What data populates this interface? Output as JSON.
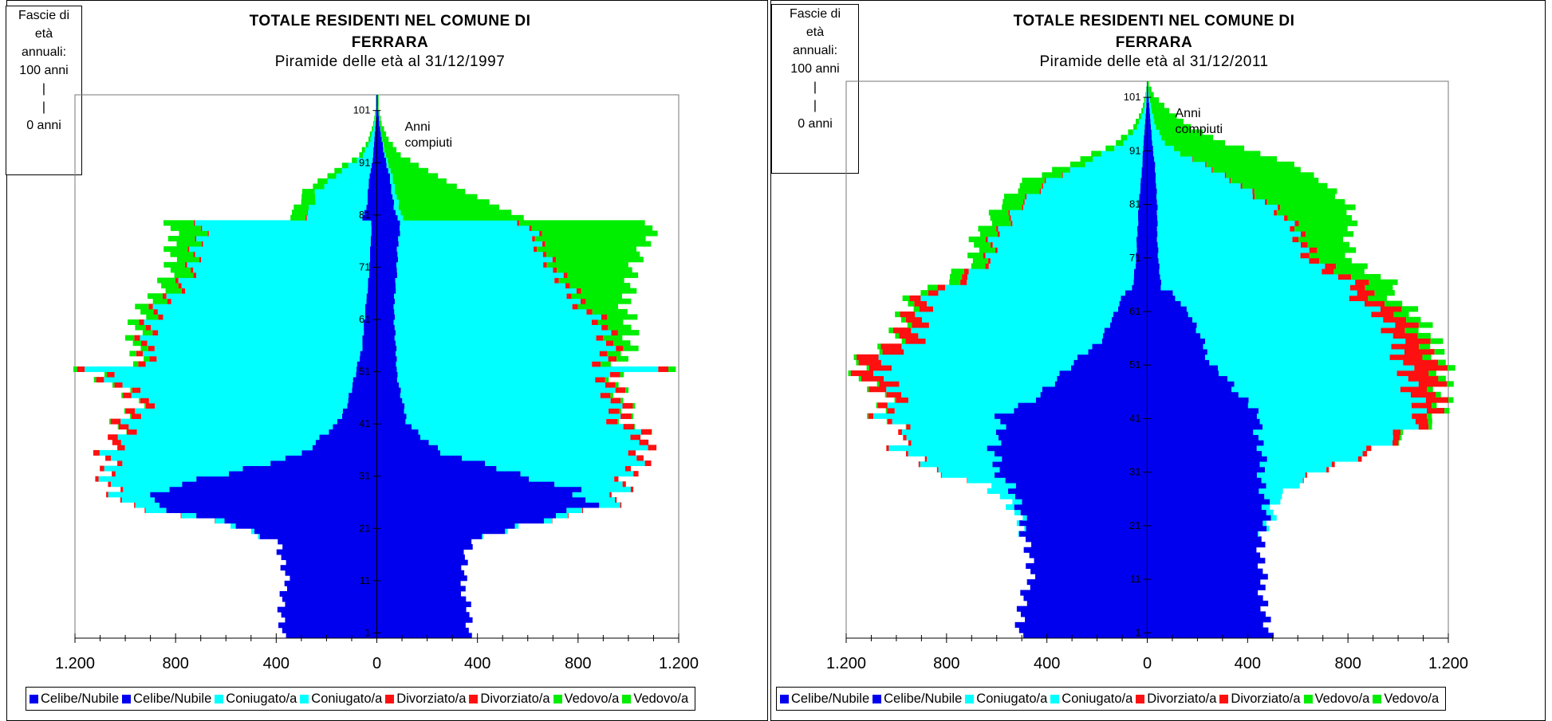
{
  "colors": {
    "celibe": "#0000ee",
    "coniugato": "#00ffff",
    "divorziato": "#ff1010",
    "vedovo": "#00ee00"
  },
  "age_box": {
    "line1": "Fascie di",
    "line2": "età",
    "line3": "annuali:",
    "line4": "100 anni",
    "line5": "|",
    "line6": "|",
    "line7": "0 anni"
  },
  "chart_data": [
    {
      "type": "bar",
      "title": "TOTALE RESIDENTI NEL COMUNE DI",
      "title2": "FERRARA",
      "subtitle": "Piramide delle età al 31/12/1997",
      "annotation1": "Anni",
      "annotation2": "compiuti",
      "age_ticks": [
        "1",
        "11",
        "21",
        "31",
        "41",
        "51",
        "61",
        "71",
        "81",
        "91",
        "101"
      ],
      "x_tick_labels": [
        "1.200",
        "800",
        "400",
        "0",
        "400",
        "800",
        "1.200"
      ],
      "xlim": [
        -1200,
        1200
      ],
      "ylim": [
        0,
        104
      ],
      "legend": [
        "Celibe/Nubile",
        "Celibe/Nubile",
        "Coniugato/a",
        "Coniugato/a",
        "Divorziato/a",
        "Divorziato/a",
        "Vedovo/a",
        "Vedovo/a"
      ],
      "ages": [
        0,
        5,
        10,
        15,
        18,
        21,
        25,
        28,
        31,
        35,
        38,
        41,
        45,
        50,
        51,
        52,
        55,
        60,
        65,
        70,
        75,
        78,
        79,
        80,
        82,
        85,
        88,
        90,
        92,
        95,
        98,
        101
      ],
      "male": {
        "celibe": [
          380,
          380,
          360,
          380,
          390,
          550,
          900,
          850,
          600,
          290,
          220,
          150,
          115,
          85,
          80,
          75,
          60,
          50,
          40,
          30,
          25,
          22,
          22,
          60,
          40,
          35,
          30,
          20,
          15,
          10,
          5,
          2
        ],
        "coniugato": [
          0,
          0,
          0,
          0,
          0,
          20,
          100,
          190,
          460,
          780,
          770,
          820,
          800,
          990,
          1070,
          800,
          870,
          840,
          780,
          700,
          680,
          680,
          680,
          230,
          220,
          200,
          140,
          90,
          40,
          15,
          5,
          0
        ],
        "divorziato": [
          0,
          0,
          0,
          0,
          0,
          0,
          5,
          10,
          15,
          25,
          40,
          40,
          35,
          30,
          30,
          30,
          25,
          20,
          15,
          10,
          5,
          5,
          5,
          5,
          0,
          0,
          0,
          0,
          0,
          0,
          0,
          0
        ],
        "vedovo": [
          0,
          0,
          0,
          0,
          0,
          0,
          0,
          0,
          0,
          0,
          0,
          5,
          5,
          10,
          15,
          20,
          30,
          45,
          60,
          80,
          100,
          120,
          120,
          60,
          60,
          50,
          35,
          25,
          15,
          8,
          4,
          2
        ]
      },
      "female": {
        "celibe": [
          360,
          370,
          340,
          350,
          380,
          560,
          850,
          790,
          560,
          260,
          180,
          120,
          100,
          80,
          80,
          80,
          75,
          70,
          70,
          80,
          85,
          90,
          95,
          80,
          70,
          60,
          50,
          40,
          30,
          20,
          10,
          4
        ],
        "coniugato": [
          0,
          0,
          0,
          0,
          0,
          15,
          80,
          190,
          440,
          770,
          870,
          840,
          820,
          820,
          1050,
          820,
          830,
          820,
          700,
          620,
          560,
          510,
          480,
          20,
          20,
          15,
          10,
          8,
          5,
          2,
          1,
          0
        ],
        "divorziato": [
          0,
          0,
          0,
          0,
          0,
          0,
          5,
          10,
          20,
          30,
          40,
          45,
          40,
          40,
          40,
          35,
          30,
          25,
          20,
          15,
          12,
          10,
          8,
          0,
          0,
          0,
          0,
          0,
          0,
          0,
          0,
          0
        ],
        "vedovo": [
          0,
          0,
          0,
          0,
          0,
          0,
          0,
          0,
          0,
          0,
          0,
          5,
          10,
          15,
          30,
          40,
          60,
          100,
          200,
          300,
          420,
          480,
          500,
          480,
          400,
          280,
          180,
          120,
          60,
          25,
          8,
          3
        ]
      }
    },
    {
      "type": "bar",
      "title": "TOTALE RESIDENTI NEL COMUNE DI",
      "title2": "FERRARA",
      "subtitle": "Piramide delle età al 31/12/2011",
      "annotation1": "Anni",
      "annotation2": "compiuti",
      "age_ticks": [
        "1",
        "11",
        "21",
        "31",
        "41",
        "51",
        "61",
        "71",
        "81",
        "91",
        "101"
      ],
      "x_tick_labels": [
        "1.200",
        "800",
        "400",
        "0",
        "400",
        "800",
        "1.200"
      ],
      "xlim": [
        -1200,
        1200
      ],
      "ylim": [
        0,
        104
      ],
      "legend": [
        "Celibe/Nubile",
        "Celibe/Nubile",
        "Coniugato/a",
        "Coniugato/a",
        "Divorziato/a",
        "Divorziato/a",
        "Vedovo/a",
        "Vedovo/a"
      ],
      "ages": [
        0,
        5,
        10,
        15,
        18,
        21,
        25,
        28,
        31,
        35,
        38,
        41,
        45,
        48,
        51,
        55,
        60,
        64,
        65,
        70,
        75,
        80,
        85,
        88,
        90,
        92,
        95,
        98,
        101,
        103
      ],
      "male": {
        "celibe": [
          520,
          500,
          470,
          470,
          480,
          500,
          520,
          540,
          600,
          620,
          580,
          580,
          430,
          360,
          290,
          190,
          130,
          90,
          60,
          45,
          40,
          35,
          25,
          20,
          18,
          15,
          10,
          5,
          2,
          1
        ],
        "coniugato": [
          0,
          0,
          0,
          0,
          0,
          10,
          40,
          100,
          250,
          380,
          360,
          460,
          560,
          690,
          760,
          740,
          760,
          760,
          730,
          580,
          560,
          480,
          360,
          240,
          160,
          80,
          30,
          10,
          2,
          0
        ],
        "divorziato": [
          0,
          0,
          0,
          0,
          0,
          0,
          0,
          0,
          5,
          10,
          15,
          20,
          60,
          90,
          90,
          80,
          60,
          40,
          30,
          10,
          8,
          5,
          5,
          0,
          0,
          0,
          0,
          0,
          0,
          0
        ],
        "vedovo": [
          0,
          0,
          0,
          0,
          0,
          0,
          0,
          0,
          0,
          0,
          0,
          5,
          5,
          10,
          10,
          15,
          20,
          30,
          40,
          60,
          70,
          80,
          90,
          60,
          40,
          30,
          15,
          8,
          3,
          1
        ]
      },
      "female": {
        "celibe": [
          480,
          470,
          460,
          450,
          460,
          470,
          470,
          460,
          460,
          450,
          440,
          460,
          360,
          320,
          250,
          220,
          170,
          100,
          55,
          45,
          40,
          40,
          35,
          30,
          25,
          20,
          15,
          10,
          4,
          2
        ],
        "coniugato": [
          0,
          0,
          0,
          0,
          0,
          15,
          40,
          130,
          240,
          450,
          580,
          650,
          680,
          720,
          780,
          760,
          760,
          720,
          770,
          600,
          560,
          460,
          310,
          190,
          110,
          50,
          20,
          8,
          2,
          0
        ],
        "divorziato": [
          0,
          0,
          0,
          0,
          0,
          0,
          0,
          0,
          10,
          20,
          30,
          60,
          100,
          120,
          140,
          100,
          90,
          70,
          60,
          40,
          20,
          10,
          5,
          5,
          0,
          0,
          0,
          0,
          0,
          0
        ],
        "vedovo": [
          0,
          0,
          0,
          0,
          0,
          0,
          0,
          0,
          0,
          0,
          10,
          20,
          20,
          30,
          30,
          50,
          60,
          80,
          110,
          130,
          190,
          300,
          350,
          350,
          320,
          240,
          140,
          70,
          20,
          5
        ]
      }
    }
  ]
}
